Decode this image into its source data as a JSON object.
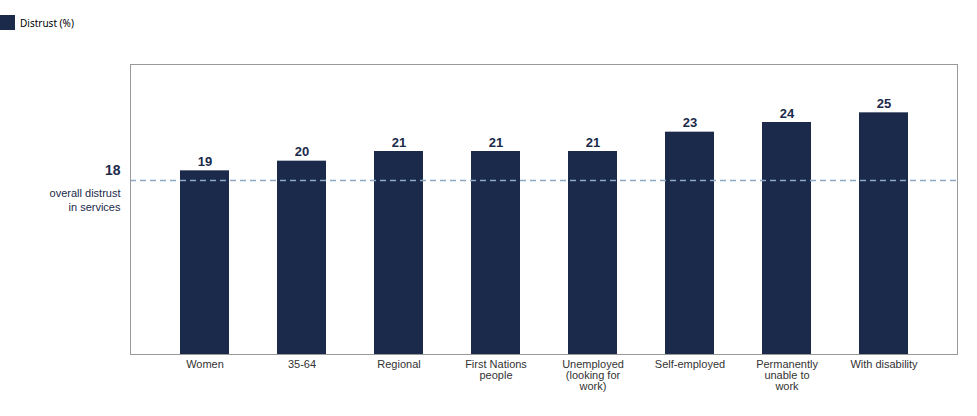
{
  "chart_data": {
    "type": "bar",
    "categories": [
      "Women",
      "35-64",
      "Regional",
      "First Nations\npeople",
      "Unemployed\n(looking for\nwork)",
      "Self-employed",
      "Permanently\nunable to\nwork",
      "With disability"
    ],
    "series": [
      {
        "name": "Distrust (%)",
        "color": "#1b2a4a",
        "values": [
          19,
          20,
          21,
          21,
          21,
          23,
          24,
          25
        ]
      }
    ],
    "ylim": [
      0,
      30
    ],
    "data_labels": true,
    "tick_labels": "x",
    "legend": "top",
    "annotations": [
      {
        "y": 18,
        "text": "overall distrust\nin services",
        "color": "#8da9c4",
        "line_style": "dashed"
      }
    ]
  }
}
